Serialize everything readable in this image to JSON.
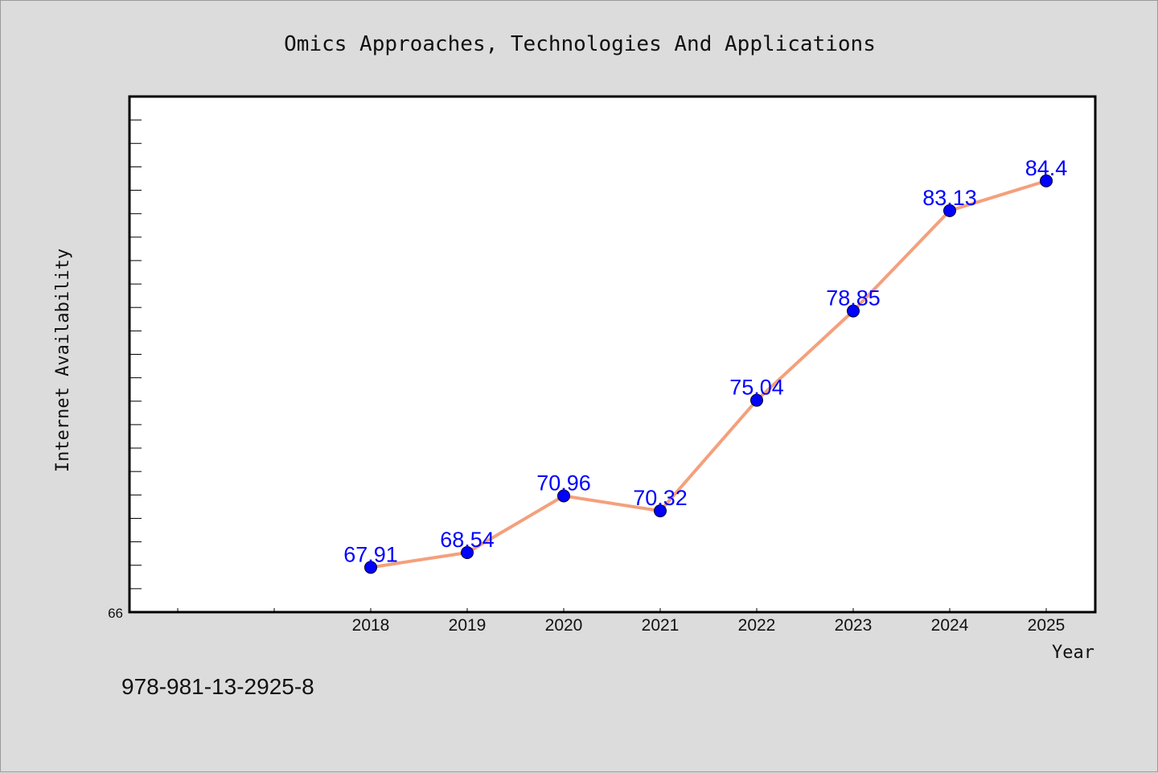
{
  "chart_data": {
    "type": "line",
    "title": "Omics Approaches, Technologies And Applications",
    "xlabel": "Year",
    "ylabel": "Internet Availability",
    "x": [
      "2018",
      "2019",
      "2020",
      "2021",
      "2022",
      "2023",
      "2024",
      "2025"
    ],
    "values": [
      67.91,
      68.54,
      70.96,
      70.32,
      75.04,
      78.85,
      83.13,
      84.4
    ],
    "data_labels": [
      "67.91",
      "68.54",
      "70.96",
      "70.32",
      "75.04",
      "78.85",
      "83.13",
      "84.4"
    ],
    "ylim": [
      66,
      88
    ],
    "y_tick_label": "66",
    "grid": false,
    "line_color": "#f4a07c",
    "marker_color": "#0000ff",
    "label_color": "#0000ff"
  },
  "footer": {
    "isbn": "978-981-13-2925-8"
  }
}
